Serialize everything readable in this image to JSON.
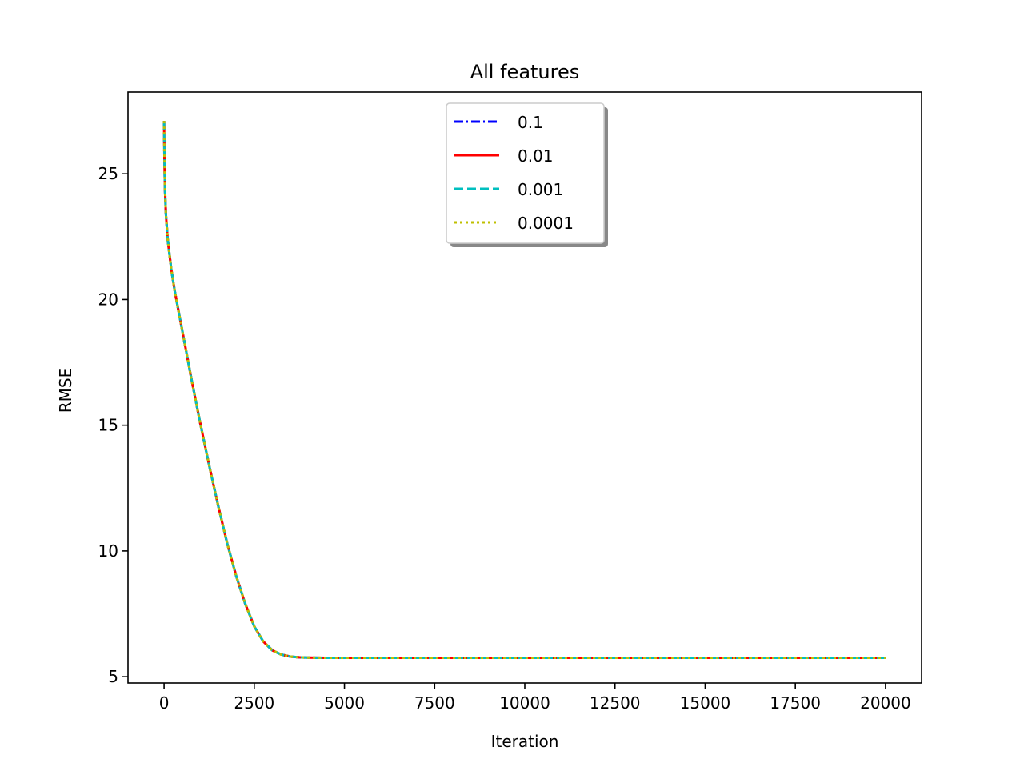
{
  "chart_data": {
    "type": "line",
    "title": "All features",
    "xlabel": "Iteration",
    "ylabel": "RMSE",
    "xlim": [
      -1000,
      21000
    ],
    "ylim": [
      4.75,
      28.25
    ],
    "xticks": [
      0,
      2500,
      5000,
      7500,
      10000,
      12500,
      15000,
      17500,
      20000
    ],
    "yticks": [
      5,
      10,
      15,
      20,
      25
    ],
    "grid": false,
    "legend": {
      "placement": "upper-center",
      "shadow": true
    },
    "x": [
      0,
      10,
      25,
      50,
      100,
      200,
      300,
      500,
      750,
      1000,
      1250,
      1500,
      1750,
      2000,
      2250,
      2500,
      2750,
      3000,
      3250,
      3500,
      3750,
      4000,
      4500,
      5000,
      6000,
      8000,
      10000,
      12500,
      15000,
      17500,
      20000
    ],
    "series": [
      {
        "name": "0.1",
        "color": "#0000ff",
        "dash": "dashdot",
        "values": [
          27.1,
          25.6,
          24.4,
          23.4,
          22.4,
          21.2,
          20.3,
          18.8,
          16.9,
          15.1,
          13.4,
          11.8,
          10.3,
          9.0,
          7.9,
          7.0,
          6.4,
          6.05,
          5.88,
          5.8,
          5.77,
          5.76,
          5.75,
          5.75,
          5.75,
          5.75,
          5.75,
          5.75,
          5.75,
          5.75,
          5.75
        ]
      },
      {
        "name": "0.01",
        "color": "#ff0000",
        "dash": "solid",
        "values": [
          27.1,
          25.6,
          24.4,
          23.4,
          22.4,
          21.2,
          20.3,
          18.8,
          16.9,
          15.1,
          13.4,
          11.8,
          10.3,
          9.0,
          7.9,
          7.0,
          6.4,
          6.05,
          5.88,
          5.8,
          5.77,
          5.76,
          5.75,
          5.75,
          5.75,
          5.75,
          5.75,
          5.75,
          5.75,
          5.75,
          5.75
        ]
      },
      {
        "name": "0.001",
        "color": "#00bfbf",
        "dash": "dashed",
        "values": [
          27.1,
          25.6,
          24.4,
          23.4,
          22.4,
          21.2,
          20.3,
          18.8,
          16.9,
          15.1,
          13.4,
          11.8,
          10.3,
          9.0,
          7.9,
          7.0,
          6.4,
          6.05,
          5.88,
          5.8,
          5.77,
          5.76,
          5.75,
          5.75,
          5.75,
          5.75,
          5.75,
          5.75,
          5.75,
          5.75,
          5.75
        ]
      },
      {
        "name": "0.0001",
        "color": "#bfbf00",
        "dash": "dotted",
        "values": [
          27.1,
          25.6,
          24.4,
          23.4,
          22.4,
          21.2,
          20.3,
          18.8,
          16.9,
          15.1,
          13.4,
          11.8,
          10.3,
          9.0,
          7.9,
          7.0,
          6.4,
          6.05,
          5.88,
          5.8,
          5.77,
          5.76,
          5.75,
          5.75,
          5.75,
          5.75,
          5.75,
          5.75,
          5.75,
          5.75,
          5.75
        ]
      }
    ]
  }
}
